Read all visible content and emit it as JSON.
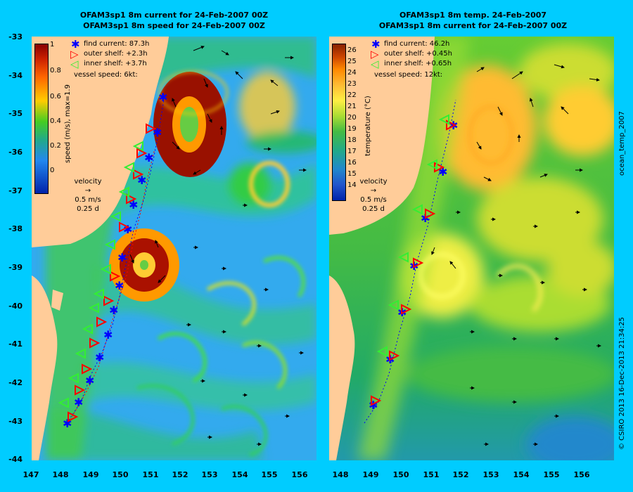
{
  "left": {
    "title1": "OFAM3sp1 8m current for 24-Feb-2007 00Z",
    "title2": "OFAM3sp1 8m speed for 24-Feb-2007 00Z",
    "legend": {
      "find": "find current: 87.3h",
      "outer": "outer shelf: +2.3h",
      "inner": "inner shelf: +3.7h",
      "vessel": "vessel speed: 6kt:"
    },
    "colorbar": {
      "label": "speed (m/s), max=1.9",
      "ticks": [
        "1",
        "0.8",
        "0.6",
        "0.4",
        "0.2",
        "0"
      ]
    },
    "velocity": {
      "title": "velocity",
      "line1": "0.5 m/s",
      "line2": "0.25 d"
    }
  },
  "right": {
    "title1": "OFAM3sp1 8m temp. 24-Feb-2007",
    "title2": "OFAM3sp1 8m current for 24-Feb-2007 00Z",
    "legend": {
      "find": "find current: 46.2h",
      "outer": "outer shelf: +0.45h",
      "inner": "inner shelf: +0.65h",
      "vessel": "vessel speed: 12kt:"
    },
    "colorbar": {
      "label": "temperature (°C)",
      "side_label": "ocean_temp_2007",
      "ticks": [
        "26",
        "25",
        "24",
        "23",
        "22",
        "21",
        "20",
        "19",
        "18",
        "17",
        "16",
        "15",
        "14"
      ]
    },
    "velocity": {
      "title": "velocity",
      "line1": "0.5 m/s",
      "line2": "0.25 d"
    }
  },
  "y_axis": [
    "-33",
    "-34",
    "-35",
    "-36",
    "-37",
    "-38",
    "-39",
    "-40",
    "-41",
    "-42",
    "-43",
    "-44"
  ],
  "x_axis": [
    "147",
    "148",
    "149",
    "150",
    "151",
    "152",
    "153",
    "154",
    "155",
    "156"
  ],
  "right_side_label": "ocean_temp_2007",
  "copyright": "© CSIRO 2013   16-Dec-2013 21:34:25",
  "colors": {
    "background": "#00ccff",
    "land": "#ffcc99",
    "find_marker": "#0000ff",
    "outer_marker": "#ff0000",
    "inner_marker": "#33ee33"
  }
}
